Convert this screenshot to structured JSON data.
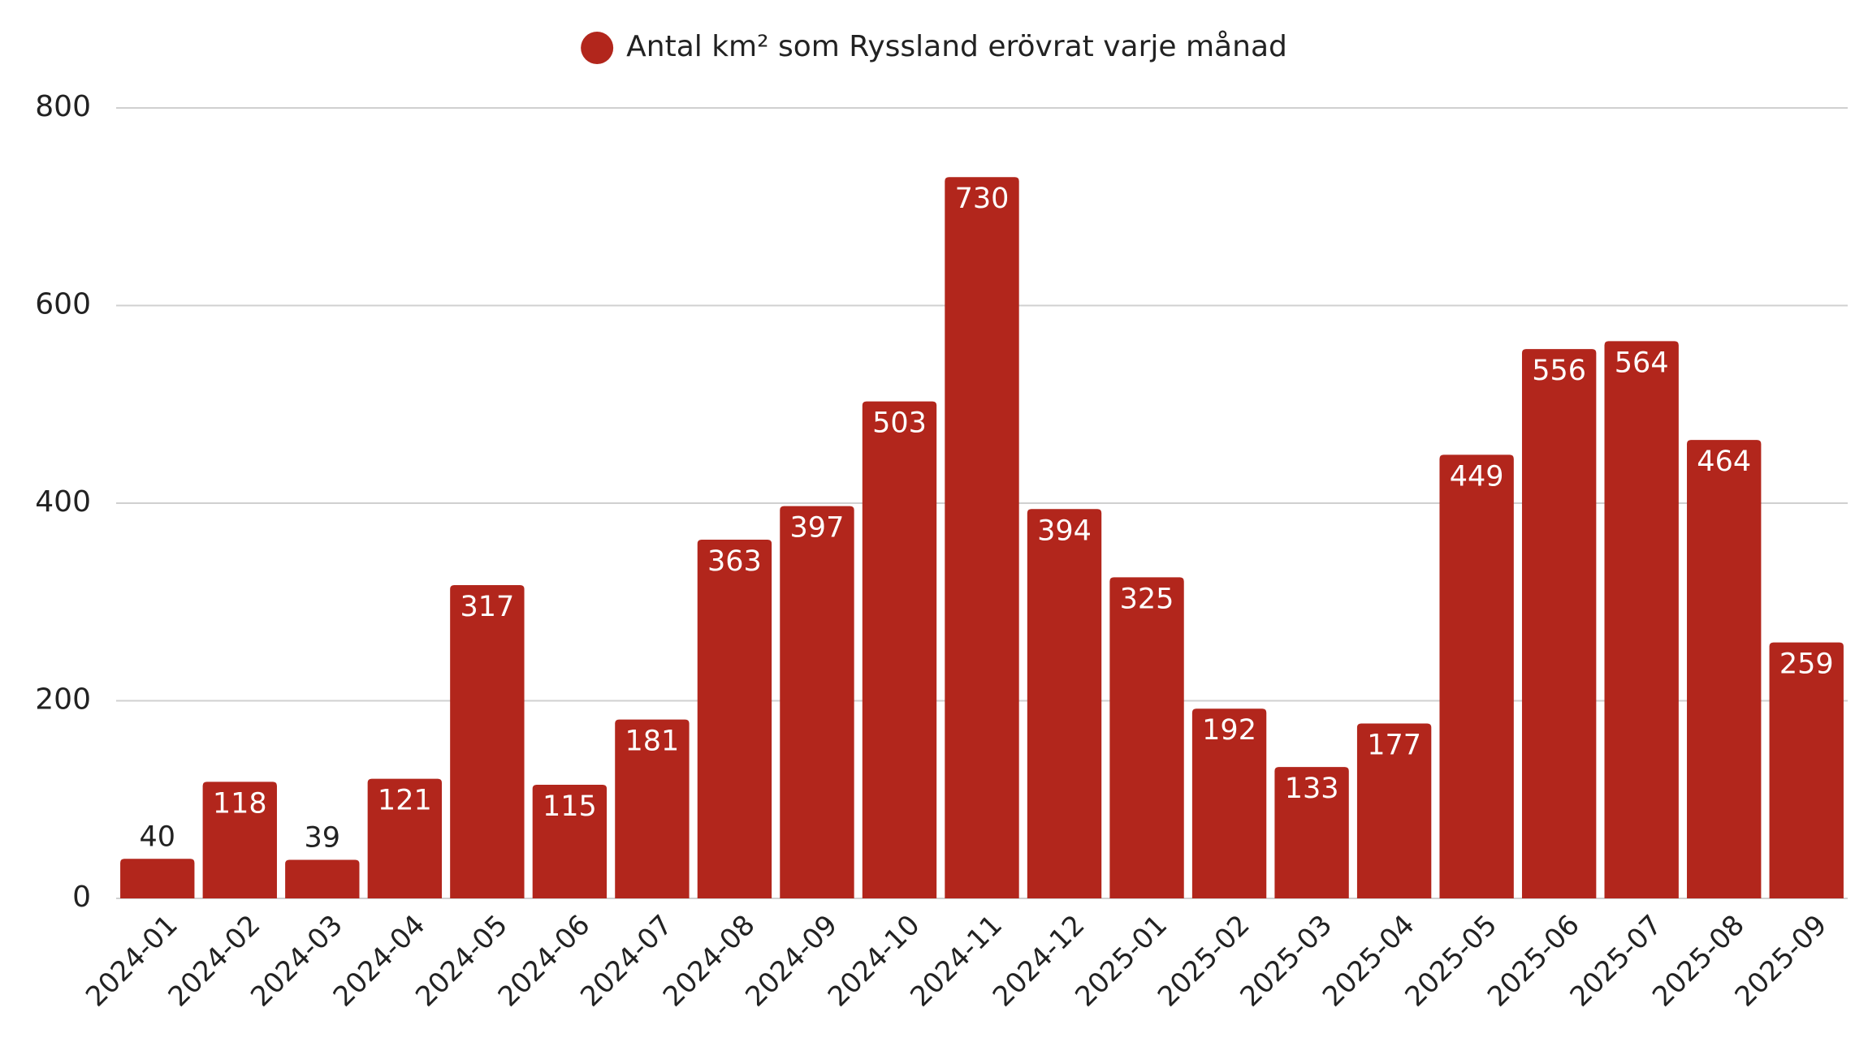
{
  "chart_data": {
    "type": "bar",
    "categories": [
      "2024-01",
      "2024-02",
      "2024-03",
      "2024-04",
      "2024-05",
      "2024-06",
      "2024-07",
      "2024-08",
      "2024-09",
      "2024-10",
      "2024-11",
      "2024-12",
      "2025-01",
      "2025-02",
      "2025-03",
      "2025-04",
      "2025-05",
      "2025-06",
      "2025-07",
      "2025-08",
      "2025-09"
    ],
    "series": [
      {
        "name": "Antal km² som Ryssland erövrat varje månad",
        "color": "#b2261c",
        "values": [
          40,
          118,
          39,
          121,
          317,
          115,
          181,
          363,
          397,
          503,
          730,
          394,
          325,
          192,
          133,
          177,
          449,
          556,
          564,
          464,
          259
        ]
      }
    ],
    "ylim": [
      0,
      800
    ],
    "yticks": [
      0,
      200,
      400,
      600,
      800
    ],
    "grid": true,
    "legend": "top"
  }
}
